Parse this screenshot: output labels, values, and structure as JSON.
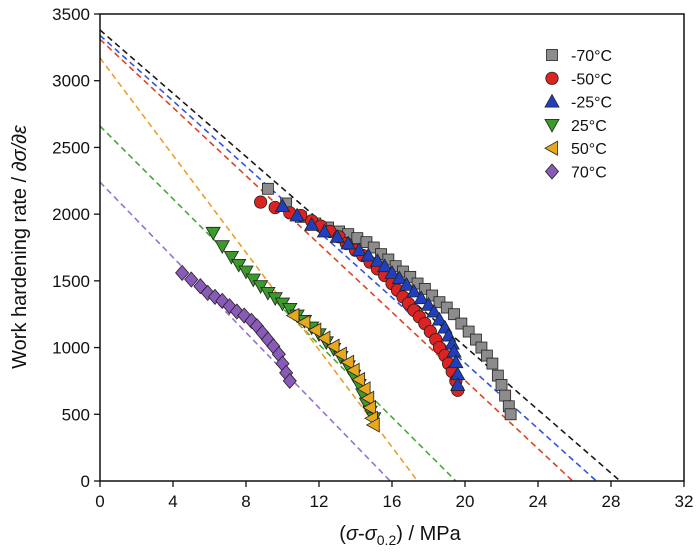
{
  "chart_data": {
    "type": "scatter",
    "xlabel_parts": [
      "(",
      "σ",
      "-",
      "σ",
      "0.2",
      ") / MPa"
    ],
    "ylabel_parts": [
      "Work hardening rate / ",
      "∂σ/∂ε"
    ],
    "xlim": [
      0,
      32
    ],
    "ylim": [
      0,
      3500
    ],
    "xticks": [
      0,
      4,
      8,
      12,
      16,
      20,
      24,
      28,
      32
    ],
    "yticks": [
      0,
      500,
      1000,
      1500,
      2000,
      2500,
      3000,
      3500
    ],
    "legend_position": "top-right",
    "series": [
      {
        "name": "-70°C",
        "marker": "square",
        "color": "#8c8c8c",
        "fit_line": {
          "x": [
            0,
            28.5
          ],
          "y": [
            3380,
            0
          ],
          "color": "#1a1a1a"
        },
        "points": [
          [
            9.2,
            2190
          ],
          [
            10.2,
            2080
          ],
          [
            11.0,
            1980
          ],
          [
            11.8,
            1930
          ],
          [
            12.5,
            1900
          ],
          [
            13.1,
            1870
          ],
          [
            13.6,
            1850
          ],
          [
            14.1,
            1820
          ],
          [
            14.6,
            1790
          ],
          [
            15.0,
            1750
          ],
          [
            15.4,
            1700
          ],
          [
            15.8,
            1660
          ],
          [
            16.2,
            1610
          ],
          [
            16.6,
            1570
          ],
          [
            17.0,
            1530
          ],
          [
            17.4,
            1480
          ],
          [
            17.8,
            1440
          ],
          [
            18.2,
            1390
          ],
          [
            18.6,
            1340
          ],
          [
            19.0,
            1300
          ],
          [
            19.4,
            1250
          ],
          [
            19.8,
            1180
          ],
          [
            20.2,
            1120
          ],
          [
            20.6,
            1060
          ],
          [
            20.9,
            1000
          ],
          [
            21.2,
            940
          ],
          [
            21.5,
            880
          ],
          [
            21.8,
            790
          ],
          [
            22.0,
            720
          ],
          [
            22.2,
            640
          ],
          [
            22.4,
            560
          ],
          [
            22.5,
            500
          ]
        ]
      },
      {
        "name": "-50°C",
        "marker": "circle",
        "color": "#dd2222",
        "fit_line": {
          "x": [
            0,
            25.9
          ],
          "y": [
            3310,
            0
          ],
          "color": "#dd4422"
        },
        "points": [
          [
            8.8,
            2090
          ],
          [
            9.6,
            2050
          ],
          [
            10.4,
            2010
          ],
          [
            11.0,
            1990
          ],
          [
            11.6,
            1950
          ],
          [
            12.1,
            1910
          ],
          [
            12.6,
            1870
          ],
          [
            13.1,
            1830
          ],
          [
            13.5,
            1780
          ],
          [
            14.0,
            1730
          ],
          [
            14.4,
            1690
          ],
          [
            14.8,
            1640
          ],
          [
            15.2,
            1590
          ],
          [
            15.6,
            1540
          ],
          [
            16.0,
            1480
          ],
          [
            16.3,
            1430
          ],
          [
            16.6,
            1380
          ],
          [
            16.9,
            1330
          ],
          [
            17.2,
            1280
          ],
          [
            17.5,
            1230
          ],
          [
            17.8,
            1180
          ],
          [
            18.1,
            1120
          ],
          [
            18.4,
            1060
          ],
          [
            18.6,
            1000
          ],
          [
            18.9,
            940
          ],
          [
            19.1,
            880
          ],
          [
            19.3,
            820
          ],
          [
            19.5,
            750
          ],
          [
            19.6,
            680
          ]
        ]
      },
      {
        "name": "-25°C",
        "marker": "triangle-up",
        "color": "#1f3fbf",
        "fit_line": {
          "x": [
            0,
            27.2
          ],
          "y": [
            3340,
            0
          ],
          "color": "#3355dd"
        },
        "points": [
          [
            10.0,
            2060
          ],
          [
            10.8,
            1990
          ],
          [
            11.6,
            1920
          ],
          [
            12.3,
            1870
          ],
          [
            13.0,
            1830
          ],
          [
            13.6,
            1780
          ],
          [
            14.2,
            1730
          ],
          [
            14.7,
            1690
          ],
          [
            15.2,
            1650
          ],
          [
            15.6,
            1610
          ],
          [
            16.0,
            1560
          ],
          [
            16.4,
            1520
          ],
          [
            16.8,
            1470
          ],
          [
            17.2,
            1420
          ],
          [
            17.6,
            1370
          ],
          [
            18.0,
            1320
          ],
          [
            18.3,
            1270
          ],
          [
            18.6,
            1210
          ],
          [
            18.9,
            1150
          ],
          [
            19.1,
            1090
          ],
          [
            19.3,
            1030
          ],
          [
            19.4,
            970
          ],
          [
            19.5,
            890
          ],
          [
            19.6,
            800
          ],
          [
            19.6,
            720
          ]
        ]
      },
      {
        "name": "25°C",
        "marker": "triangle-down",
        "color": "#3a9a2a",
        "fit_line": {
          "x": [
            0,
            19.5
          ],
          "y": [
            2660,
            0
          ],
          "color": "#44aa33"
        },
        "points": [
          [
            6.2,
            1860
          ],
          [
            6.7,
            1760
          ],
          [
            7.2,
            1680
          ],
          [
            7.6,
            1620
          ],
          [
            8.0,
            1570
          ],
          [
            8.4,
            1510
          ],
          [
            8.8,
            1460
          ],
          [
            9.2,
            1410
          ],
          [
            9.6,
            1370
          ],
          [
            10.0,
            1330
          ],
          [
            10.4,
            1290
          ],
          [
            10.8,
            1240
          ],
          [
            11.2,
            1200
          ],
          [
            11.6,
            1150
          ],
          [
            12.0,
            1100
          ],
          [
            12.4,
            1040
          ],
          [
            12.8,
            990
          ],
          [
            13.2,
            930
          ],
          [
            13.6,
            860
          ],
          [
            13.9,
            790
          ],
          [
            14.2,
            720
          ],
          [
            14.4,
            650
          ],
          [
            14.6,
            580
          ],
          [
            14.8,
            520
          ],
          [
            15.0,
            470
          ]
        ]
      },
      {
        "name": "50°C",
        "marker": "triangle-left",
        "color": "#e8a81e",
        "fit_line": {
          "x": [
            0,
            17.4
          ],
          "y": [
            3170,
            0
          ],
          "color": "#e8a030"
        },
        "points": [
          [
            10.6,
            1240
          ],
          [
            11.2,
            1190
          ],
          [
            11.8,
            1130
          ],
          [
            12.3,
            1070
          ],
          [
            12.8,
            1010
          ],
          [
            13.2,
            950
          ],
          [
            13.6,
            890
          ],
          [
            13.9,
            830
          ],
          [
            14.2,
            760
          ],
          [
            14.5,
            690
          ],
          [
            14.7,
            620
          ],
          [
            14.8,
            550
          ],
          [
            14.9,
            470
          ],
          [
            15.0,
            420
          ]
        ]
      },
      {
        "name": "70°C",
        "marker": "diamond",
        "color": "#8a5ab8",
        "fit_line": {
          "x": [
            0,
            15.9
          ],
          "y": [
            2240,
            0
          ],
          "color": "#9a70d0"
        },
        "points": [
          [
            4.5,
            1560
          ],
          [
            5.0,
            1510
          ],
          [
            5.5,
            1460
          ],
          [
            5.9,
            1410
          ],
          [
            6.3,
            1380
          ],
          [
            6.7,
            1350
          ],
          [
            7.1,
            1310
          ],
          [
            7.5,
            1270
          ],
          [
            7.9,
            1240
          ],
          [
            8.3,
            1200
          ],
          [
            8.6,
            1160
          ],
          [
            8.9,
            1110
          ],
          [
            9.2,
            1060
          ],
          [
            9.5,
            1010
          ],
          [
            9.8,
            950
          ],
          [
            10.0,
            880
          ],
          [
            10.2,
            810
          ],
          [
            10.4,
            750
          ]
        ]
      }
    ]
  }
}
